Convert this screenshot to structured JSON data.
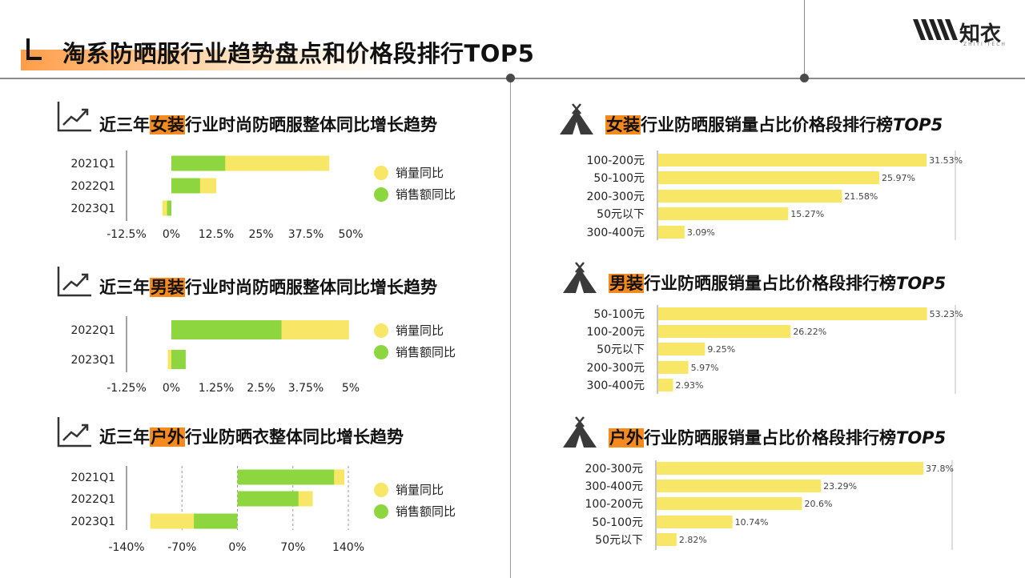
{
  "page": {
    "title": "淘系防晒服行业趋势盘点和价格段排行TOP5",
    "logo_text": "知衣",
    "logo_sub": "ZHIYI TECH"
  },
  "colors": {
    "volume": "#f8e766",
    "sales": "#8ed640",
    "bar": "#f8e766",
    "accent": "#f58a1f"
  },
  "left": {
    "legend": {
      "volume": "销量同比",
      "sales": "销售额同比"
    },
    "sections": [
      {
        "prefix": "近三年",
        "highlight": "女装",
        "suffix": "行业时尚防晒服整体同比增长趋势"
      },
      {
        "prefix": "近三年",
        "highlight": "男装",
        "suffix": "行业时尚防晒服整体同比增长趋势"
      },
      {
        "prefix": "近三年",
        "highlight": "户外",
        "suffix": "行业防晒衣整体同比增长趋势"
      }
    ]
  },
  "right": {
    "sections": [
      {
        "highlight": "女装",
        "suffix": "行业防晒服销量占比价格段排行榜",
        "tail": "TOP5"
      },
      {
        "highlight": "男装",
        "suffix": "行业防晒服销量占比价格段排行榜",
        "tail": "TOP5"
      },
      {
        "highlight": "户外",
        "suffix": "行业防晒服销量占比价格段排行榜",
        "tail": "TOP5"
      }
    ]
  },
  "chart_data": [
    {
      "type": "bar",
      "orientation": "horizontal",
      "categories": [
        "2021Q1",
        "2022Q1",
        "2023Q1"
      ],
      "series": [
        {
          "name": "销量同比",
          "values": [
            44,
            12.5,
            -2.5
          ]
        },
        {
          "name": "销售额同比",
          "values": [
            15,
            8,
            -1.2
          ]
        }
      ],
      "xlim": [
        -12.5,
        50
      ],
      "xticks": [
        "-12.5%",
        "0%",
        "12.5%",
        "25%",
        "37.5%",
        "50%"
      ]
    },
    {
      "type": "bar",
      "orientation": "horizontal",
      "categories": [
        "2022Q1",
        "2023Q1"
      ],
      "series": [
        {
          "name": "销量同比",
          "values": [
            4.95,
            -0.1
          ]
        },
        {
          "name": "销售额同比",
          "values": [
            3.07,
            0.4
          ]
        }
      ],
      "xlim": [
        -1.25,
        5
      ],
      "xticks": [
        "-1.25%",
        "0%",
        "1.25%",
        "2.5%",
        "3.75%",
        "5%"
      ]
    },
    {
      "type": "bar",
      "orientation": "horizontal",
      "categories": [
        "2021Q1",
        "2022Q1",
        "2023Q1"
      ],
      "series": [
        {
          "name": "销量同比",
          "values": [
            135,
            95,
            -110
          ]
        },
        {
          "name": "销售额同比",
          "values": [
            122,
            77,
            -55
          ]
        }
      ],
      "xlim": [
        -140,
        140
      ],
      "xticks": [
        "-140%",
        "-70%",
        "0%",
        "70%",
        "140%"
      ]
    },
    {
      "type": "bar",
      "orientation": "horizontal",
      "categories": [
        "100-200元",
        "50-100元",
        "200-300元",
        "50元以下",
        "300-400元"
      ],
      "values": [
        31.53,
        25.97,
        21.58,
        15.27,
        3.09
      ],
      "labels": [
        "31.53%",
        "25.97%",
        "21.58%",
        "15.27%",
        "3.09%"
      ],
      "xlim": [
        0,
        35
      ]
    },
    {
      "type": "bar",
      "orientation": "horizontal",
      "categories": [
        "50-100元",
        "100-200元",
        "50元以下",
        "200-300元",
        "300-400元"
      ],
      "values": [
        53.23,
        26.22,
        9.25,
        5.97,
        2.93
      ],
      "labels": [
        "53.23%",
        "26.22%",
        "9.25%",
        "5.97%",
        "2.93%"
      ],
      "xlim": [
        0,
        59
      ]
    },
    {
      "type": "bar",
      "orientation": "horizontal",
      "categories": [
        "200-300元",
        "300-400元",
        "100-200元",
        "50-100元",
        "50元以下"
      ],
      "values": [
        37.8,
        23.29,
        20.6,
        10.74,
        2.82
      ],
      "labels": [
        "37.8%",
        "23.29%",
        "20.6%",
        "10.74%",
        "2.82%"
      ],
      "xlim": [
        0,
        42
      ]
    }
  ]
}
